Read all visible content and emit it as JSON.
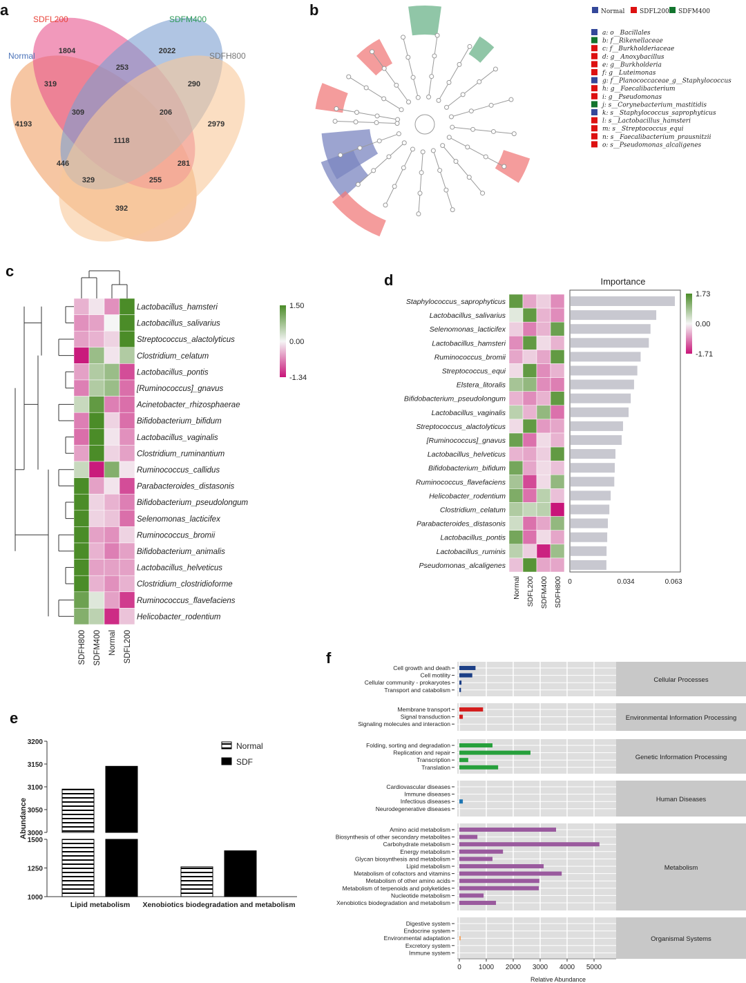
{
  "panels": {
    "a": "a",
    "b": "b",
    "c": "c",
    "d": "d",
    "e": "e",
    "f": "f"
  },
  "venn": {
    "sets": [
      {
        "name": "Normal",
        "color": "#4a72b8"
      },
      {
        "name": "SDFL200",
        "color": "#e8443a"
      },
      {
        "name": "SDFM400",
        "color": "#2f9a5a"
      },
      {
        "name": "SDFH800",
        "color": "#777777"
      }
    ],
    "fills": [
      "#f0a066",
      "#e8558e",
      "#7b9fd0",
      "#f8c89a"
    ],
    "regions": [
      {
        "label": "1804",
        "v": 1804
      },
      {
        "label": "2022",
        "v": 2022
      },
      {
        "label": "253",
        "v": 253
      },
      {
        "label": "319",
        "v": 319
      },
      {
        "label": "290",
        "v": 290
      },
      {
        "label": "309",
        "v": 309
      },
      {
        "label": "206",
        "v": 206
      },
      {
        "label": "4193",
        "v": 4193
      },
      {
        "label": "2979",
        "v": 2979
      },
      {
        "label": "1118",
        "v": 1118
      },
      {
        "label": "446",
        "v": 446
      },
      {
        "label": "281",
        "v": 281
      },
      {
        "label": "329",
        "v": 329
      },
      {
        "label": "255",
        "v": 255
      },
      {
        "label": "392",
        "v": 392
      }
    ]
  },
  "cladogram": {
    "legend_groups": [
      {
        "name": "Normal",
        "color": "#34489a"
      },
      {
        "name": "SDFL200",
        "color": "#dd1111"
      },
      {
        "name": "SDFM400",
        "color": "#13752e"
      }
    ],
    "taxa": [
      {
        "label": "a: o__Bacillales",
        "group": "Normal"
      },
      {
        "label": "b: f__Rikenellaceae",
        "group": "SDFM400"
      },
      {
        "label": "c: f__Burkholderiaceae",
        "group": "SDFL200"
      },
      {
        "label": "d: g__Anoxybacillus",
        "group": "SDFL200"
      },
      {
        "label": "e: g__Burkholderia",
        "group": "SDFL200"
      },
      {
        "label": "f: g__Luteimonas",
        "group": "SDFL200"
      },
      {
        "label": "g: f__Planococcaceae_g__Staphylococcus",
        "group": "Normal"
      },
      {
        "label": "h: g__Faecalibacterium",
        "group": "SDFL200"
      },
      {
        "label": "i: g__Pseudomonas",
        "group": "SDFL200"
      },
      {
        "label": "j: s__Corynebacterium_mastitidis",
        "group": "SDFM400"
      },
      {
        "label": "k: s__Staphylococcus_saprophyticus",
        "group": "Normal"
      },
      {
        "label": "l: s__Lactobacillus_hamsteri",
        "group": "SDFL200"
      },
      {
        "label": "m: s__Streptococcus_equi",
        "group": "SDFL200"
      },
      {
        "label": "n: s__Faecalibacterium_prausnitzii",
        "group": "SDFL200"
      },
      {
        "label": "o: s__Pseudomonas_alcaligenes",
        "group": "SDFL200"
      }
    ]
  },
  "chart_data": [
    {
      "type": "heatmap",
      "panel": "c",
      "columns": [
        "SDFH800",
        "SDFM400",
        "Normal",
        "SDFL200"
      ],
      "colorbar": {
        "max": 1.5,
        "mid": 0.0,
        "min": -1.34,
        "labels": [
          "1.50",
          "0.00",
          "-1.34"
        ]
      },
      "rows": [
        "Lactobacillus_hamsteri",
        "Lactobacillus_salivarius",
        "Streptococcus_alactolyticus",
        "Clostridium_celatum",
        "Lactobacillus_pontis",
        "[Ruminococcus]_gnavus",
        "Acinetobacter_rhizosphaerae",
        "Bifidobacterium_bifidum",
        "Lactobacillus_vaginalis",
        "Clostridium_ruminantium",
        "Ruminococcus_callidus",
        "Parabacteroides_distasonis",
        "Bifidobacterium_pseudolongum",
        "Selenomonas_lacticifex",
        "Ruminococcus_bromii",
        "Bifidobacterium_animalis",
        "Lactobacillus_helveticus",
        "Clostridium_clostridioforme",
        "Ruminococcus_flavefaciens",
        "Helicobacter_rodentium"
      ],
      "values": [
        [
          -0.4,
          -0.1,
          -0.6,
          1.5
        ],
        [
          -0.6,
          -0.5,
          0,
          1.5
        ],
        [
          -0.5,
          -0.4,
          -0.2,
          1.5
        ],
        [
          -1.3,
          0.8,
          -0.1,
          0.6
        ],
        [
          -0.5,
          0.6,
          0.8,
          -1.0
        ],
        [
          -0.7,
          0.6,
          0.8,
          -0.8
        ],
        [
          0.4,
          1.3,
          -0.7,
          -0.8
        ],
        [
          -0.7,
          1.5,
          -0.2,
          -0.8
        ],
        [
          -0.8,
          1.5,
          -0.1,
          -0.6
        ],
        [
          -0.5,
          1.5,
          -0.2,
          -0.5
        ],
        [
          0.4,
          -1.3,
          1.0,
          -0.1
        ],
        [
          1.5,
          -0.5,
          -0.1,
          -1.0
        ],
        [
          1.5,
          -0.2,
          -0.4,
          -0.7
        ],
        [
          1.5,
          -0.2,
          -0.3,
          -0.8
        ],
        [
          1.5,
          -0.5,
          -0.6,
          -0.2
        ],
        [
          1.5,
          -0.4,
          -0.7,
          -0.5
        ],
        [
          1.5,
          -0.5,
          -0.5,
          -0.5
        ],
        [
          1.5,
          -0.4,
          -0.6,
          -0.4
        ],
        [
          1.2,
          0.2,
          -0.5,
          -1.1
        ],
        [
          1.0,
          0.5,
          -1.2,
          -0.3
        ]
      ]
    },
    {
      "type": "heatmap+bar",
      "panel": "d",
      "title": "Importance",
      "columns": [
        "Normal",
        "SDFL200",
        "SDFM400",
        "SDFH800"
      ],
      "colorbar": {
        "max": 1.73,
        "mid": 0.0,
        "min": -1.71,
        "labels": [
          "1.73",
          "0.00",
          "-1.71"
        ]
      },
      "xticks": [
        "0",
        "0.034",
        "0.063"
      ],
      "xlim": [
        0,
        0.068
      ],
      "rows": [
        "Staphylococcus_saprophyticus",
        "Lactobacillus_salivarius",
        "Selenomonas_lacticifex",
        "Lactobacillus_hamsteri",
        "Ruminococcus_bromii",
        "Streptococcus_equi",
        "Elstera_litoralis",
        "Bifidobacterium_pseudolongum",
        "Lactobacillus_vaginalis",
        "Streptococcus_alactolyticus",
        "[Ruminococcus]_gnavus",
        "Lactobacillus_helveticus",
        "Bifidobacterium_bifidum",
        "Ruminococcus_flavefaciens",
        "Helicobacter_rodentium",
        "Clostridium_celatum",
        "Parabacteroides_distasonis",
        "Lactobacillus_pontis",
        "Lactobacillus_ruminis",
        "Pseudomonas_alcaligenes"
      ],
      "importance": [
        0.0638,
        0.0525,
        0.049,
        0.048,
        0.043,
        0.041,
        0.039,
        0.037,
        0.0357,
        0.0323,
        0.0315,
        0.0277,
        0.0273,
        0.027,
        0.0248,
        0.024,
        0.0231,
        0.0227,
        0.0223,
        0.0222
      ],
      "values": [
        [
          1.5,
          -0.6,
          -0.3,
          -0.8
        ],
        [
          0.2,
          1.5,
          -0.5,
          -0.8
        ],
        [
          -0.3,
          -0.9,
          -0.5,
          1.4
        ],
        [
          -0.8,
          1.5,
          -0.2,
          -0.5
        ],
        [
          -0.6,
          -0.3,
          -0.6,
          1.5
        ],
        [
          -0.2,
          1.5,
          -0.8,
          -0.5
        ],
        [
          0.8,
          1.0,
          -0.8,
          -0.9
        ],
        [
          -0.5,
          -0.8,
          -0.5,
          1.5
        ],
        [
          0.6,
          -0.5,
          1.0,
          -1.0
        ],
        [
          -0.2,
          1.5,
          -0.7,
          -0.6
        ],
        [
          1.4,
          -1.0,
          -0.2,
          -0.5
        ],
        [
          -0.5,
          -0.6,
          -0.3,
          1.5
        ],
        [
          1.3,
          -0.6,
          -0.2,
          -0.4
        ],
        [
          0.8,
          -1.3,
          -0.2,
          1.0
        ],
        [
          1.2,
          -1.0,
          0.6,
          -0.4
        ],
        [
          0.7,
          0.5,
          0.6,
          -1.7
        ],
        [
          0.4,
          -1.0,
          -0.6,
          1.0
        ],
        [
          1.3,
          -1.0,
          -0.2,
          -0.6
        ],
        [
          0.6,
          -0.3,
          -1.6,
          0.9
        ],
        [
          -0.4,
          1.6,
          -0.6,
          -0.6
        ]
      ]
    },
    {
      "type": "bar",
      "panel": "e",
      "ylabel": "Abundance",
      "categories": [
        "Lipid metabolism",
        "Xenobiotics biodegradation and metabolism"
      ],
      "series": [
        {
          "name": "Normal",
          "values": [
            3095,
            1260
          ]
        },
        {
          "name": "SDF",
          "values": [
            3145,
            1400
          ]
        }
      ],
      "yticks_upper": [
        "3000",
        "3050",
        "3100",
        "3150",
        "3200"
      ],
      "yticks_lower": [
        "1000",
        "1250",
        "1500"
      ],
      "ylim_upper": [
        3000,
        3200
      ],
      "ylim_lower": [
        1000,
        1500
      ]
    },
    {
      "type": "bar",
      "panel": "f",
      "xlabel": "Relative Abundance",
      "xticks": [
        "0",
        "1000",
        "2000",
        "3000",
        "4000",
        "5000"
      ],
      "xlim": [
        0,
        5800
      ],
      "groups": [
        {
          "name": "Cellular Processes",
          "color": "#1c3f86",
          "items": [
            [
              "Cell growth and death",
              600
            ],
            [
              "Cell motility",
              480
            ],
            [
              "Cellular community - prokaryotes",
              80
            ],
            [
              "Transport and catabolism",
              60
            ]
          ]
        },
        {
          "name": "Environmental Information Processing",
          "color": "#d41e1e",
          "items": [
            [
              "Membrane transport",
              880
            ],
            [
              "Signal transduction",
              130
            ],
            [
              "Signaling molecules and interaction",
              0
            ]
          ]
        },
        {
          "name": "Genetic Information Processing",
          "color": "#27a03c",
          "items": [
            [
              "Folding, sorting and degradation",
              1230
            ],
            [
              "Replication and repair",
              2640
            ],
            [
              "Transcription",
              330
            ],
            [
              "Translation",
              1440
            ]
          ]
        },
        {
          "name": "Human Diseases",
          "color": "#1f77b4",
          "items": [
            [
              "Cardiovascular diseases",
              0
            ],
            [
              "Immune diseases",
              0
            ],
            [
              "Infectious diseases",
              130
            ],
            [
              "Neurodegenerative diseases",
              0
            ]
          ]
        },
        {
          "name": "Metabolism",
          "color": "#9a5a9e",
          "items": [
            [
              "Amino acid metabolism",
              3590
            ],
            [
              "Biosynthesis of other secondary metabolites",
              670
            ],
            [
              "Carbohydrate metabolism",
              5200
            ],
            [
              "Energy metabolism",
              1620
            ],
            [
              "Glycan biosynthesis and metabolism",
              1230
            ],
            [
              "Lipid metabolism",
              3130
            ],
            [
              "Metabolism of cofactors and vitamins",
              3800
            ],
            [
              "Metabolism of other amino acids",
              2970
            ],
            [
              "Metabolism of terpenoids and polyketides",
              2950
            ],
            [
              "Nucleotide metabolism",
              900
            ],
            [
              "Xenobiotics biodegradation and metabolism",
              1360
            ]
          ]
        },
        {
          "name": "Organismal Systems",
          "color": "#f4a460",
          "items": [
            [
              "Digestive system",
              0
            ],
            [
              "Endocrine system",
              0
            ],
            [
              "Environmental adaptation",
              15
            ],
            [
              "Excretory system",
              0
            ],
            [
              "Immune system",
              0
            ]
          ]
        }
      ]
    }
  ]
}
